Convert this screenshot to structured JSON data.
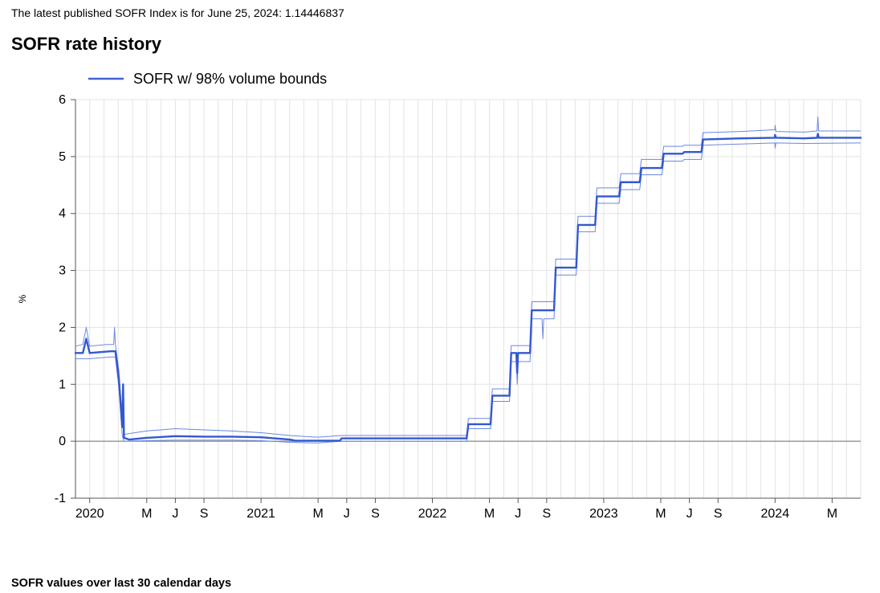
{
  "header": {
    "index_text": "The latest published SOFR Index is for June 25, 2024: 1.14446837"
  },
  "chart": {
    "type": "line",
    "title": "SOFR rate history",
    "legend_label": "SOFR w/ 98% volume bounds",
    "ylabel": "%",
    "xlim": [
      2019.917,
      2024.5
    ],
    "ylim": [
      -1,
      6
    ],
    "ytick_step": 1,
    "y_ticks": [
      -1,
      0,
      1,
      2,
      3,
      4,
      5,
      6
    ],
    "x_ticks": [
      {
        "t": 2020.0,
        "label": "2020",
        "major": true
      },
      {
        "t": 2020.333,
        "label": "M",
        "major": false
      },
      {
        "t": 2020.5,
        "label": "J",
        "major": false
      },
      {
        "t": 2020.667,
        "label": "S",
        "major": false
      },
      {
        "t": 2021.0,
        "label": "2021",
        "major": true
      },
      {
        "t": 2021.333,
        "label": "M",
        "major": false
      },
      {
        "t": 2021.5,
        "label": "J",
        "major": false
      },
      {
        "t": 2021.667,
        "label": "S",
        "major": false
      },
      {
        "t": 2022.0,
        "label": "2022",
        "major": true
      },
      {
        "t": 2022.333,
        "label": "M",
        "major": false
      },
      {
        "t": 2022.5,
        "label": "J",
        "major": false
      },
      {
        "t": 2022.667,
        "label": "S",
        "major": false
      },
      {
        "t": 2023.0,
        "label": "2023",
        "major": true
      },
      {
        "t": 2023.333,
        "label": "M",
        "major": false
      },
      {
        "t": 2023.5,
        "label": "J",
        "major": false
      },
      {
        "t": 2023.667,
        "label": "S",
        "major": false
      },
      {
        "t": 2024.0,
        "label": "2024",
        "major": true
      },
      {
        "t": 2024.333,
        "label": "M",
        "major": false
      }
    ],
    "colors": {
      "background": "#ffffff",
      "grid": "#e3e3e3",
      "zero_line": "#888888",
      "axis_line": "#555555",
      "main_line": "#3358d0",
      "bound_line": "#6a88e0",
      "legend_line": "#3f62d4",
      "text": "#000000"
    },
    "line_widths": {
      "main": 2.4,
      "bound": 1.0,
      "grid": 1.0,
      "axis": 1.0,
      "zero": 1.2,
      "legend": 2.4
    },
    "font_sizes": {
      "title": 22,
      "tick": 16,
      "ylabel": 12,
      "legend": 18
    },
    "series_main": [
      [
        2019.917,
        1.55
      ],
      [
        2019.96,
        1.55
      ],
      [
        2019.98,
        1.8
      ],
      [
        2020.0,
        1.55
      ],
      [
        2020.12,
        1.58
      ],
      [
        2020.15,
        1.58
      ],
      [
        2020.17,
        1.1
      ],
      [
        2020.19,
        0.25
      ],
      [
        2020.195,
        1.0
      ],
      [
        2020.2,
        0.06
      ],
      [
        2020.23,
        0.03
      ],
      [
        2020.33,
        0.06
      ],
      [
        2020.5,
        0.09
      ],
      [
        2020.67,
        0.08
      ],
      [
        2020.83,
        0.08
      ],
      [
        2021.0,
        0.07
      ],
      [
        2021.17,
        0.03
      ],
      [
        2021.2,
        0.01
      ],
      [
        2021.33,
        0.01
      ],
      [
        2021.46,
        0.01
      ],
      [
        2021.47,
        0.05
      ],
      [
        2021.67,
        0.05
      ],
      [
        2021.83,
        0.05
      ],
      [
        2022.0,
        0.05
      ],
      [
        2022.2,
        0.05
      ],
      [
        2022.21,
        0.3
      ],
      [
        2022.34,
        0.3
      ],
      [
        2022.35,
        0.8
      ],
      [
        2022.45,
        0.8
      ],
      [
        2022.46,
        1.55
      ],
      [
        2022.49,
        1.55
      ],
      [
        2022.495,
        1.2
      ],
      [
        2022.5,
        1.55
      ],
      [
        2022.57,
        1.55
      ],
      [
        2022.58,
        2.3
      ],
      [
        2022.71,
        2.3
      ],
      [
        2022.72,
        3.05
      ],
      [
        2022.84,
        3.05
      ],
      [
        2022.85,
        3.8
      ],
      [
        2022.95,
        3.8
      ],
      [
        2022.96,
        4.3
      ],
      [
        2023.09,
        4.3
      ],
      [
        2023.1,
        4.55
      ],
      [
        2023.21,
        4.55
      ],
      [
        2023.22,
        4.8
      ],
      [
        2023.34,
        4.8
      ],
      [
        2023.35,
        5.05
      ],
      [
        2023.46,
        5.05
      ],
      [
        2023.47,
        5.08
      ],
      [
        2023.57,
        5.08
      ],
      [
        2023.58,
        5.3
      ],
      [
        2023.8,
        5.32
      ],
      [
        2023.999,
        5.33
      ],
      [
        2024.0,
        5.38
      ],
      [
        2024.005,
        5.33
      ],
      [
        2024.17,
        5.32
      ],
      [
        2024.245,
        5.33
      ],
      [
        2024.25,
        5.4
      ],
      [
        2024.255,
        5.33
      ],
      [
        2024.5,
        5.33
      ]
    ],
    "series_upper": [
      [
        2019.917,
        1.67
      ],
      [
        2019.96,
        1.7
      ],
      [
        2019.98,
        2.0
      ],
      [
        2020.0,
        1.67
      ],
      [
        2020.1,
        1.7
      ],
      [
        2020.14,
        1.7
      ],
      [
        2020.145,
        2.0
      ],
      [
        2020.15,
        1.7
      ],
      [
        2020.17,
        1.25
      ],
      [
        2020.19,
        0.4
      ],
      [
        2020.2,
        0.12
      ],
      [
        2020.33,
        0.18
      ],
      [
        2020.5,
        0.22
      ],
      [
        2020.67,
        0.2
      ],
      [
        2020.83,
        0.18
      ],
      [
        2021.0,
        0.15
      ],
      [
        2021.17,
        0.1
      ],
      [
        2021.33,
        0.07
      ],
      [
        2021.47,
        0.1
      ],
      [
        2021.67,
        0.1
      ],
      [
        2021.83,
        0.1
      ],
      [
        2022.0,
        0.1
      ],
      [
        2022.2,
        0.1
      ],
      [
        2022.21,
        0.4
      ],
      [
        2022.34,
        0.4
      ],
      [
        2022.35,
        0.92
      ],
      [
        2022.45,
        0.92
      ],
      [
        2022.46,
        1.68
      ],
      [
        2022.57,
        1.68
      ],
      [
        2022.58,
        2.45
      ],
      [
        2022.71,
        2.45
      ],
      [
        2022.72,
        3.2
      ],
      [
        2022.84,
        3.2
      ],
      [
        2022.85,
        3.95
      ],
      [
        2022.95,
        3.95
      ],
      [
        2022.96,
        4.45
      ],
      [
        2023.09,
        4.45
      ],
      [
        2023.1,
        4.7
      ],
      [
        2023.21,
        4.7
      ],
      [
        2023.22,
        4.95
      ],
      [
        2023.34,
        4.95
      ],
      [
        2023.35,
        5.18
      ],
      [
        2023.46,
        5.18
      ],
      [
        2023.47,
        5.2
      ],
      [
        2023.57,
        5.2
      ],
      [
        2023.58,
        5.42
      ],
      [
        2023.8,
        5.44
      ],
      [
        2023.999,
        5.47
      ],
      [
        2024.0,
        5.55
      ],
      [
        2024.005,
        5.44
      ],
      [
        2024.17,
        5.43
      ],
      [
        2024.245,
        5.45
      ],
      [
        2024.25,
        5.7
      ],
      [
        2024.255,
        5.45
      ],
      [
        2024.5,
        5.45
      ]
    ],
    "series_lower": [
      [
        2019.917,
        1.45
      ],
      [
        2020.0,
        1.45
      ],
      [
        2020.12,
        1.48
      ],
      [
        2020.15,
        1.48
      ],
      [
        2020.17,
        0.95
      ],
      [
        2020.19,
        0.1
      ],
      [
        2020.2,
        0.0
      ],
      [
        2020.33,
        0.01
      ],
      [
        2020.5,
        0.02
      ],
      [
        2020.67,
        0.02
      ],
      [
        2020.83,
        0.02
      ],
      [
        2021.0,
        0.01
      ],
      [
        2021.17,
        -0.02
      ],
      [
        2021.33,
        -0.03
      ],
      [
        2021.47,
        0.0
      ],
      [
        2021.67,
        0.0
      ],
      [
        2021.83,
        0.0
      ],
      [
        2022.0,
        0.0
      ],
      [
        2022.2,
        0.0
      ],
      [
        2022.21,
        0.22
      ],
      [
        2022.34,
        0.22
      ],
      [
        2022.35,
        0.7
      ],
      [
        2022.45,
        0.7
      ],
      [
        2022.46,
        1.4
      ],
      [
        2022.49,
        1.4
      ],
      [
        2022.495,
        1.0
      ],
      [
        2022.5,
        1.4
      ],
      [
        2022.57,
        1.4
      ],
      [
        2022.58,
        2.15
      ],
      [
        2022.64,
        2.15
      ],
      [
        2022.645,
        1.8
      ],
      [
        2022.65,
        2.15
      ],
      [
        2022.71,
        2.15
      ],
      [
        2022.72,
        2.92
      ],
      [
        2022.84,
        2.92
      ],
      [
        2022.85,
        3.68
      ],
      [
        2022.95,
        3.68
      ],
      [
        2022.96,
        4.18
      ],
      [
        2023.09,
        4.18
      ],
      [
        2023.1,
        4.42
      ],
      [
        2023.21,
        4.42
      ],
      [
        2023.22,
        4.68
      ],
      [
        2023.34,
        4.68
      ],
      [
        2023.35,
        4.92
      ],
      [
        2023.46,
        4.92
      ],
      [
        2023.47,
        4.95
      ],
      [
        2023.57,
        4.95
      ],
      [
        2023.58,
        5.2
      ],
      [
        2023.8,
        5.22
      ],
      [
        2023.999,
        5.24
      ],
      [
        2024.0,
        5.15
      ],
      [
        2024.005,
        5.24
      ],
      [
        2024.17,
        5.23
      ],
      [
        2024.5,
        5.24
      ]
    ]
  },
  "footer": {
    "text": "SOFR values over last 30 calendar days"
  }
}
